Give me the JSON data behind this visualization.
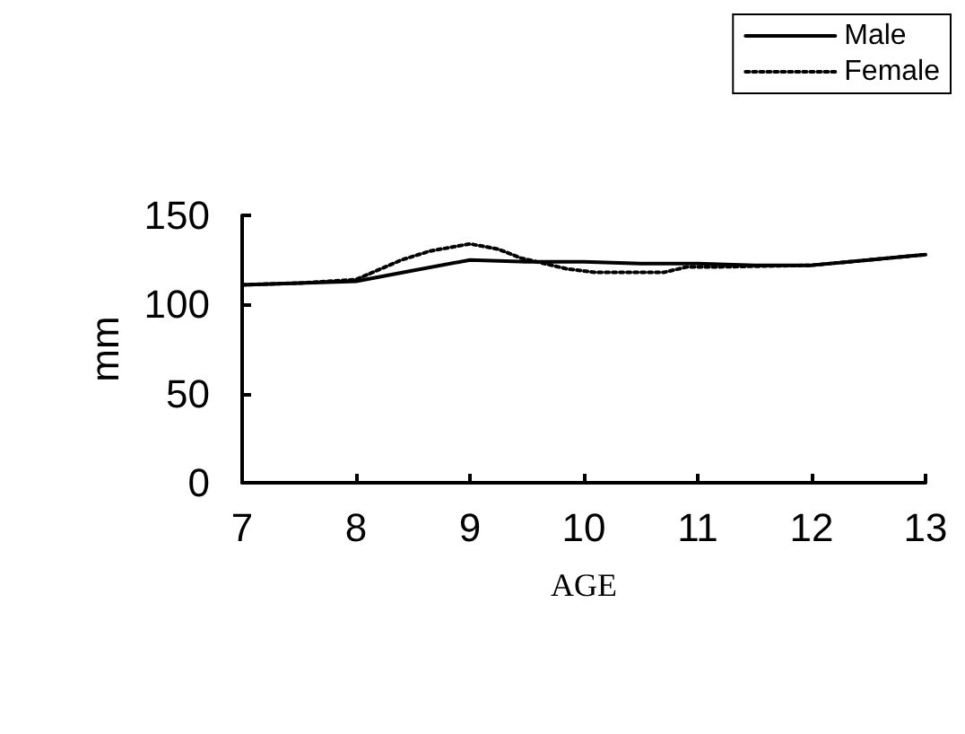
{
  "chart_data": {
    "type": "line",
    "xlabel": "AGE",
    "ylabel": "mm",
    "xlim": [
      7,
      13
    ],
    "xticks": [
      7,
      8,
      9,
      10,
      11,
      12,
      13
    ],
    "ylim": [
      0,
      150
    ],
    "yticks": [
      0,
      50,
      100,
      150
    ],
    "grid": false,
    "legend": "top right",
    "marker": "none",
    "series": [
      {
        "name": "Male",
        "color": "#000000",
        "line_style": "solid",
        "x": [
          7,
          7.5,
          8,
          8.5,
          9,
          9.5,
          10,
          10.5,
          11,
          11.5,
          12,
          12.5,
          13
        ],
        "values": [
          111,
          112,
          113,
          119,
          125,
          124,
          124,
          123,
          123,
          122,
          122,
          125,
          128
        ]
      },
      {
        "name": "Female",
        "color": "#000000",
        "line_style": "dotted",
        "x": [
          7,
          7.5,
          8,
          8.4,
          8.65,
          9,
          9.25,
          9.45,
          9.85,
          10.1,
          10.7,
          10.9,
          11.1,
          12,
          12.5,
          13
        ],
        "values": [
          111,
          112,
          114,
          125,
          130,
          134,
          131,
          126,
          120,
          118,
          118,
          121,
          121,
          122,
          125,
          128
        ]
      }
    ]
  }
}
